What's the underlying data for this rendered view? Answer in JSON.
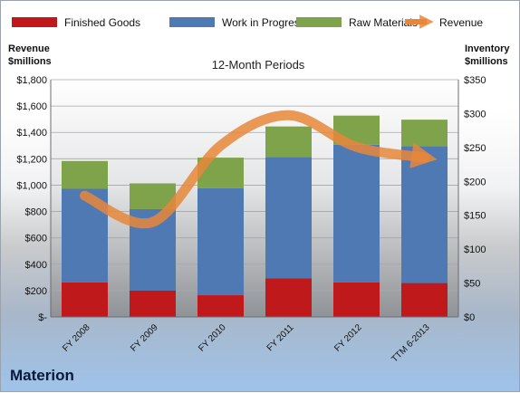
{
  "company": "Materion",
  "chart_data": {
    "type": "bar",
    "stacked": true,
    "title": "12-Month Periods",
    "categories": [
      "FY 2008",
      "FY 2009",
      "FY 2010",
      "FY 2011",
      "FY 2012",
      "TTM 6-2013"
    ],
    "left_axis": {
      "label_line1": "Revenue",
      "label_line2": "$millions",
      "range": [
        0,
        1800
      ],
      "ticks": [
        "$-",
        "$200",
        "$400",
        "$600",
        "$800",
        "$1,000",
        "$1,200",
        "$1,400",
        "$1,600",
        "$1,800"
      ]
    },
    "right_axis": {
      "label_line1": "Inventory",
      "label_line2": "$millions",
      "range": [
        0,
        350
      ],
      "ticks": [
        "$0",
        "$50",
        "$100",
        "$150",
        "$200",
        "$250",
        "$300",
        "$350"
      ]
    },
    "series": [
      {
        "name": "Finished Goods",
        "axis": "right",
        "color": "#c0191c",
        "values": [
          51,
          39,
          32,
          57,
          51,
          50
        ]
      },
      {
        "name": "Work in Progress",
        "axis": "right",
        "color": "#4f79b3",
        "values": [
          138,
          120,
          158,
          179,
          203,
          202
        ]
      },
      {
        "name": "Raw Materials",
        "axis": "right",
        "color": "#7ea34a",
        "values": [
          41,
          38,
          45,
          45,
          43,
          39
        ]
      },
      {
        "name": "Revenue",
        "axis": "left",
        "type": "line",
        "color": "#e8873a",
        "values": [
          920,
          720,
          1300,
          1530,
          1290,
          1210
        ]
      }
    ],
    "legend": "top",
    "grid": true
  }
}
